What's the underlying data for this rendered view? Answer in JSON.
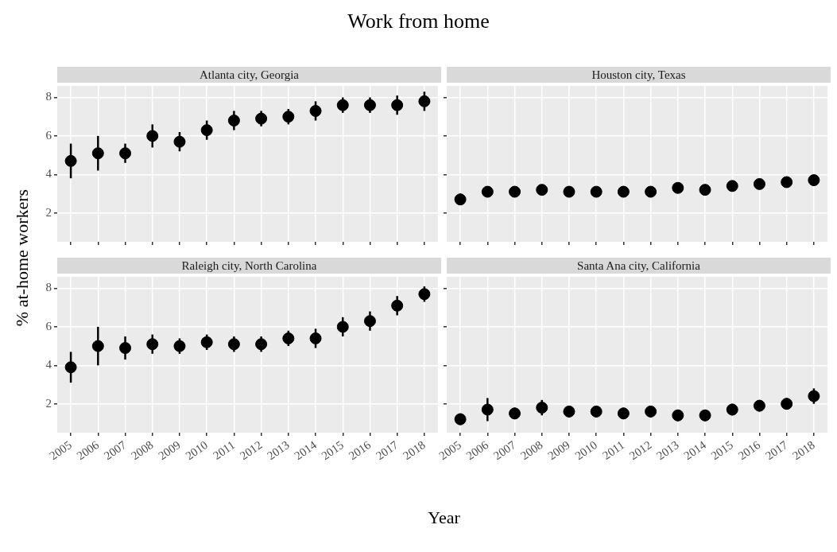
{
  "chart_data": [
    {
      "type": "scatter",
      "title": "Work from home",
      "subtitle": "Atlanta city, Georgia",
      "xlabel": "Year",
      "ylabel": "% at-home workers",
      "categories": [
        "2005",
        "2006",
        "2007",
        "2008",
        "2009",
        "2010",
        "2011",
        "2012",
        "2013",
        "2014",
        "2015",
        "2016",
        "2017",
        "2018"
      ],
      "ylim": [
        0.5,
        8.6
      ],
      "yticks": [
        2,
        4,
        6,
        8
      ],
      "grid": true,
      "legend": false,
      "marker": "circle",
      "tick_labels": "y",
      "series": [
        {
          "color": "#000000",
          "values": [
            4.7,
            5.1,
            5.1,
            6.0,
            5.7,
            6.3,
            6.8,
            6.9,
            7.0,
            7.3,
            7.6,
            7.6,
            7.6,
            7.8
          ],
          "errors": [
            [
              3.8,
              5.6
            ],
            [
              4.2,
              6.0
            ],
            [
              4.6,
              5.6
            ],
            [
              5.4,
              6.6
            ],
            [
              5.2,
              6.2
            ],
            [
              5.8,
              6.8
            ],
            [
              6.3,
              7.3
            ],
            [
              6.5,
              7.3
            ],
            [
              6.6,
              7.4
            ],
            [
              6.8,
              7.8
            ],
            [
              7.2,
              8.0
            ],
            [
              7.2,
              8.0
            ],
            [
              7.1,
              8.1
            ],
            [
              7.3,
              8.3
            ]
          ]
        }
      ]
    },
    {
      "type": "scatter",
      "subtitle": "Houston city, Texas",
      "categories": [
        "2005",
        "2006",
        "2007",
        "2008",
        "2009",
        "2010",
        "2011",
        "2012",
        "2013",
        "2014",
        "2015",
        "2016",
        "2017",
        "2018"
      ],
      "ylim": [
        0.5,
        8.6
      ],
      "yticks": [
        2,
        4,
        6,
        8
      ],
      "grid": true,
      "legend": false,
      "marker": "circle",
      "tick_labels": false,
      "series": [
        {
          "color": "#000000",
          "values": [
            2.7,
            3.1,
            3.1,
            3.2,
            3.1,
            3.1,
            3.1,
            3.1,
            3.3,
            3.2,
            3.4,
            3.5,
            3.6,
            3.7
          ],
          "errors": [
            [
              2.4,
              3.0
            ],
            [
              2.9,
              3.3
            ],
            [
              2.9,
              3.3
            ],
            [
              3.0,
              3.4
            ],
            [
              2.9,
              3.3
            ],
            [
              2.9,
              3.3
            ],
            [
              2.9,
              3.3
            ],
            [
              2.9,
              3.3
            ],
            [
              3.1,
              3.5
            ],
            [
              3.0,
              3.4
            ],
            [
              3.2,
              3.6
            ],
            [
              3.3,
              3.7
            ],
            [
              3.4,
              3.8
            ],
            [
              3.5,
              3.9
            ]
          ]
        }
      ]
    },
    {
      "type": "scatter",
      "subtitle": "Raleigh city, North Carolina",
      "categories": [
        "2005",
        "2006",
        "2007",
        "2008",
        "2009",
        "2010",
        "2011",
        "2012",
        "2013",
        "2014",
        "2015",
        "2016",
        "2017",
        "2018"
      ],
      "ylim": [
        0.5,
        8.6
      ],
      "yticks": [
        2,
        4,
        6,
        8
      ],
      "grid": true,
      "legend": false,
      "marker": "circle",
      "series": [
        {
          "color": "#000000",
          "values": [
            3.9,
            5.0,
            4.9,
            5.1,
            5.0,
            5.2,
            5.1,
            5.1,
            5.4,
            5.4,
            6.0,
            6.3,
            7.1,
            7.7
          ],
          "errors": [
            [
              3.1,
              4.7
            ],
            [
              4.0,
              6.0
            ],
            [
              4.3,
              5.5
            ],
            [
              4.6,
              5.6
            ],
            [
              4.6,
              5.4
            ],
            [
              4.8,
              5.6
            ],
            [
              4.7,
              5.5
            ],
            [
              4.7,
              5.5
            ],
            [
              5.0,
              5.8
            ],
            [
              4.9,
              5.9
            ],
            [
              5.5,
              6.5
            ],
            [
              5.8,
              6.8
            ],
            [
              6.6,
              7.6
            ],
            [
              7.3,
              8.1
            ]
          ]
        }
      ]
    },
    {
      "type": "scatter",
      "subtitle": "Santa Ana city, California",
      "categories": [
        "2005",
        "2006",
        "2007",
        "2008",
        "2009",
        "2010",
        "2011",
        "2012",
        "2013",
        "2014",
        "2015",
        "2016",
        "2017",
        "2018"
      ],
      "ylim": [
        0.5,
        8.6
      ],
      "yticks": [
        2,
        4,
        6,
        8
      ],
      "grid": true,
      "legend": false,
      "marker": "circle",
      "tick_labels": "x",
      "series": [
        {
          "color": "#000000",
          "values": [
            1.2,
            1.7,
            1.5,
            1.8,
            1.6,
            1.6,
            1.5,
            1.6,
            1.4,
            1.4,
            1.7,
            1.9,
            2.0,
            2.4
          ],
          "errors": [
            [
              0.9,
              1.5
            ],
            [
              1.1,
              2.3
            ],
            [
              1.2,
              1.8
            ],
            [
              1.4,
              2.2
            ],
            [
              1.3,
              1.9
            ],
            [
              1.3,
              1.9
            ],
            [
              1.2,
              1.8
            ],
            [
              1.3,
              1.9
            ],
            [
              1.1,
              1.7
            ],
            [
              1.1,
              1.7
            ],
            [
              1.4,
              2.0
            ],
            [
              1.6,
              2.2
            ],
            [
              1.7,
              2.3
            ],
            [
              2.0,
              2.8
            ]
          ]
        }
      ]
    }
  ]
}
